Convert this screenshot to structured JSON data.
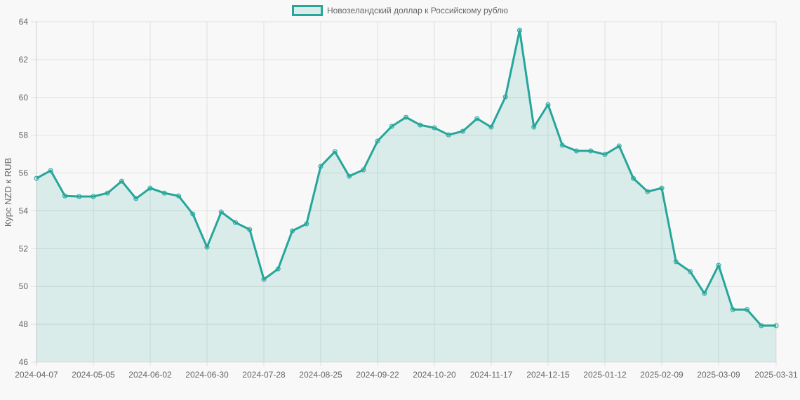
{
  "legend": {
    "label": "Новозеландский доллар к Российскому рублю"
  },
  "colors": {
    "line": "#26a69a",
    "fill": "rgba(38,166,154,0.15)",
    "grid": "#e0e0e0",
    "background": "#f8f8f8"
  },
  "chart_data": {
    "type": "line",
    "title": "",
    "legend": [
      "Новозеландский доллар к Российскому рублю"
    ],
    "legend_position": "top",
    "xlabel": "",
    "ylabel": "Курс NZD к RUB",
    "ylim": [
      46,
      64
    ],
    "y_ticks": [
      46,
      48,
      50,
      52,
      54,
      56,
      58,
      60,
      62,
      64
    ],
    "x_tick_labels": [
      "2024-04-07",
      "2024-05-05",
      "2024-06-02",
      "2024-06-30",
      "2024-07-28",
      "2024-08-25",
      "2024-09-22",
      "2024-10-20",
      "2024-11-17",
      "2024-12-15",
      "2025-01-12",
      "2025-02-09",
      "2025-03-09",
      "2025-03-31"
    ],
    "grid": true,
    "fill": true,
    "x": [
      "2024-04-07",
      "2024-04-14",
      "2024-04-21",
      "2024-04-28",
      "2024-05-05",
      "2024-05-12",
      "2024-05-19",
      "2024-05-26",
      "2024-06-02",
      "2024-06-09",
      "2024-06-16",
      "2024-06-23",
      "2024-06-30",
      "2024-07-07",
      "2024-07-14",
      "2024-07-21",
      "2024-07-28",
      "2024-08-04",
      "2024-08-11",
      "2024-08-18",
      "2024-08-25",
      "2024-09-01",
      "2024-09-08",
      "2024-09-15",
      "2024-09-22",
      "2024-09-29",
      "2024-10-06",
      "2024-10-13",
      "2024-10-20",
      "2024-10-27",
      "2024-11-03",
      "2024-11-10",
      "2024-11-17",
      "2024-11-24",
      "2024-12-01",
      "2024-12-08",
      "2024-12-15",
      "2024-12-22",
      "2024-12-29",
      "2025-01-05",
      "2025-01-12",
      "2025-01-19",
      "2025-01-26",
      "2025-02-02",
      "2025-02-09",
      "2025-02-16",
      "2025-02-23",
      "2025-03-02",
      "2025-03-09",
      "2025-03-16",
      "2025-03-23",
      "2025-03-30",
      "2025-03-31"
    ],
    "series": [
      {
        "name": "Новозеландский доллар к Российскому рублю",
        "values": [
          55.72,
          56.13,
          54.79,
          54.76,
          54.76,
          54.94,
          55.57,
          54.65,
          55.2,
          54.94,
          54.79,
          53.83,
          52.08,
          53.94,
          53.38,
          53.01,
          50.38,
          50.93,
          52.94,
          53.31,
          56.35,
          57.13,
          55.83,
          56.17,
          57.69,
          58.47,
          58.95,
          58.54,
          58.39,
          58.02,
          58.21,
          58.88,
          58.43,
          60.03,
          63.55,
          58.43,
          59.62,
          57.47,
          57.17,
          57.17,
          56.98,
          57.43,
          55.72,
          55.02,
          55.2,
          51.31,
          50.79,
          49.63,
          51.12,
          48.78,
          48.78,
          47.93,
          47.93
        ]
      }
    ]
  }
}
